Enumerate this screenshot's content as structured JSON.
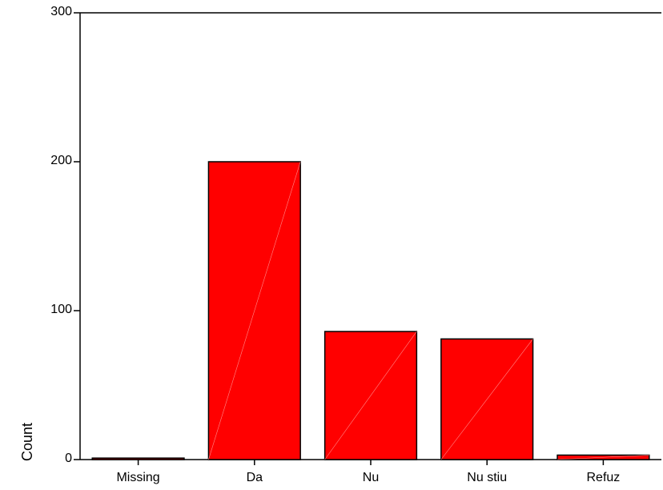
{
  "chart_data": {
    "type": "bar",
    "title": "",
    "xlabel": "",
    "ylabel": "Count",
    "categories": [
      "Missing",
      "Da",
      "Nu",
      "Nu stiu",
      "Refuz"
    ],
    "values": [
      1,
      200,
      86,
      81,
      3
    ],
    "ylim": [
      0,
      300
    ],
    "yticks": [
      0,
      100,
      200,
      300
    ],
    "grid": false,
    "legend": "none",
    "bar_color": "#ff0000",
    "bar_stroke": "#000000"
  }
}
